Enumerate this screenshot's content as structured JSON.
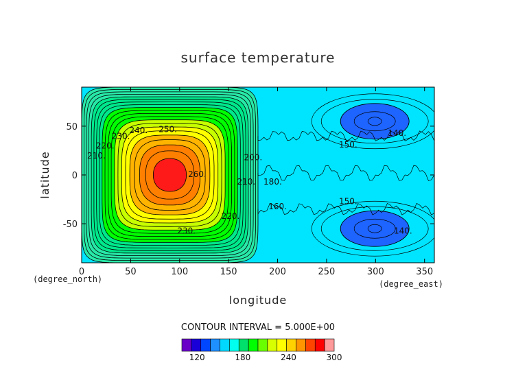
{
  "chart_data": {
    "type": "contour",
    "title": "surface temperature",
    "xlabel": "longitude",
    "ylabel": "latitude",
    "x_unit": "(degree_east)",
    "y_unit": "(degree_north)",
    "xlim": [
      0,
      360
    ],
    "ylim": [
      -90,
      90
    ],
    "x_ticks": [
      0,
      50,
      100,
      150,
      200,
      250,
      300,
      350
    ],
    "y_ticks": [
      -50,
      0,
      50
    ],
    "contour_interval_text": "CONTOUR INTERVAL = 5.000E+00",
    "contour_interval": 5,
    "field": {
      "warm_pool": {
        "center_lon": 90,
        "center_lat": 0,
        "max": 265,
        "edge": 160,
        "lon_range": [
          0,
          180
        ],
        "lat_range": [
          -90,
          90
        ]
      },
      "cold_pools": [
        {
          "center_lon": 302,
          "center_lat": 55,
          "min": 135
        },
        {
          "center_lon": 302,
          "center_lat": -55,
          "min": 135
        }
      ],
      "background": 150
    },
    "contour_labels": [
      {
        "text": "250.",
        "lon": 88,
        "lat": 44
      },
      {
        "text": "260.",
        "lon": 118,
        "lat": -2
      },
      {
        "text": "240.",
        "lon": 58,
        "lat": 43
      },
      {
        "text": "230.",
        "lon": 40,
        "lat": 37
      },
      {
        "text": "220.",
        "lon": 24,
        "lat": 27
      },
      {
        "text": "210.",
        "lon": 15,
        "lat": 17
      },
      {
        "text": "230.",
        "lon": 107,
        "lat": -60
      },
      {
        "text": "220.",
        "lon": 152,
        "lat": -45
      },
      {
        "text": "210.",
        "lon": 168,
        "lat": -10
      },
      {
        "text": "200.",
        "lon": 175,
        "lat": 15
      },
      {
        "text": "150.",
        "lon": 272,
        "lat": 28
      },
      {
        "text": "150.",
        "lon": 272,
        "lat": -30
      },
      {
        "text": "140.",
        "lon": 322,
        "lat": 40
      },
      {
        "text": "140.",
        "lon": 328,
        "lat": -60
      },
      {
        "text": "160.",
        "lon": 200,
        "lat": -35
      },
      {
        "text": "180.",
        "lon": 195,
        "lat": -10
      }
    ],
    "colorbar": {
      "ticks": [
        120,
        180,
        240,
        300
      ],
      "levels": [
        100,
        110,
        120,
        130,
        140,
        150,
        160,
        170,
        180,
        190,
        200,
        210,
        220,
        230,
        240,
        250,
        260,
        270,
        280,
        290,
        300
      ],
      "colors": [
        "#6a00c8",
        "#1a00d8",
        "#0046ff",
        "#1e90ff",
        "#00d8ff",
        "#00ffee",
        "#00e06a",
        "#00ff00",
        "#6aff00",
        "#d8ff00",
        "#ffff00",
        "#ffd200",
        "#ff9600",
        "#ff4400",
        "#ff0000",
        "#ff9a9a"
      ]
    },
    "colors": {
      "t_ge_260": "#ff1a1a",
      "t_250_260": "#ff8000",
      "t_240_250": "#ffb400",
      "t_230_240": "#ffff00",
      "t_220_230": "#c8ff00",
      "t_200_220": "#00ff00",
      "t_180_200": "#00e88c",
      "t_160_180": "#28e8a8",
      "t_145_160": "#00e5ff",
      "t_140_145": "#28c8ff",
      "t_lt_140": "#1e64ff"
    }
  }
}
